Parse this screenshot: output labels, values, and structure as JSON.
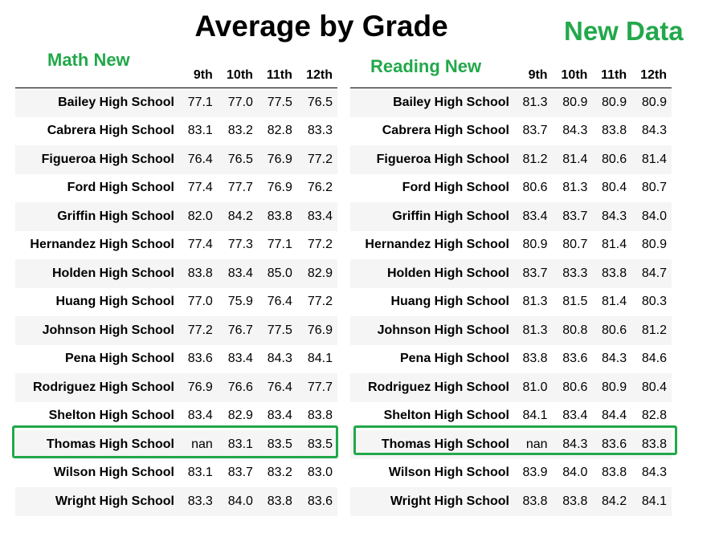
{
  "title": "Average by Grade",
  "tag": "New Data",
  "math": {
    "label": "Math New",
    "headers": [
      "",
      "9th",
      "10th",
      "11th",
      "12th"
    ],
    "rows": [
      [
        "Bailey High School",
        "77.1",
        "77.0",
        "77.5",
        "76.5"
      ],
      [
        "Cabrera High School",
        "83.1",
        "83.2",
        "82.8",
        "83.3"
      ],
      [
        "Figueroa High School",
        "76.4",
        "76.5",
        "76.9",
        "77.2"
      ],
      [
        "Ford High School",
        "77.4",
        "77.7",
        "76.9",
        "76.2"
      ],
      [
        "Griffin High School",
        "82.0",
        "84.2",
        "83.8",
        "83.4"
      ],
      [
        "Hernandez High School",
        "77.4",
        "77.3",
        "77.1",
        "77.2"
      ],
      [
        "Holden High School",
        "83.8",
        "83.4",
        "85.0",
        "82.9"
      ],
      [
        "Huang High School",
        "77.0",
        "75.9",
        "76.4",
        "77.2"
      ],
      [
        "Johnson High School",
        "77.2",
        "76.7",
        "77.5",
        "76.9"
      ],
      [
        "Pena High School",
        "83.6",
        "83.4",
        "84.3",
        "84.1"
      ],
      [
        "Rodriguez High School",
        "76.9",
        "76.6",
        "76.4",
        "77.7"
      ],
      [
        "Shelton High School",
        "83.4",
        "82.9",
        "83.4",
        "83.8"
      ],
      [
        "Thomas High School",
        "nan",
        "83.1",
        "83.5",
        "83.5"
      ],
      [
        "Wilson High School",
        "83.1",
        "83.7",
        "83.2",
        "83.0"
      ],
      [
        "Wright High School",
        "83.3",
        "84.0",
        "83.8",
        "83.6"
      ]
    ]
  },
  "reading": {
    "label": "Reading New",
    "headers": [
      "",
      "9th",
      "10th",
      "11th",
      "12th"
    ],
    "rows": [
      [
        "Bailey High School",
        "81.3",
        "80.9",
        "80.9",
        "80.9"
      ],
      [
        "Cabrera High School",
        "83.7",
        "84.3",
        "83.8",
        "84.3"
      ],
      [
        "Figueroa High School",
        "81.2",
        "81.4",
        "80.6",
        "81.4"
      ],
      [
        "Ford High School",
        "80.6",
        "81.3",
        "80.4",
        "80.7"
      ],
      [
        "Griffin High School",
        "83.4",
        "83.7",
        "84.3",
        "84.0"
      ],
      [
        "Hernandez High School",
        "80.9",
        "80.7",
        "81.4",
        "80.9"
      ],
      [
        "Holden High School",
        "83.7",
        "83.3",
        "83.8",
        "84.7"
      ],
      [
        "Huang High School",
        "81.3",
        "81.5",
        "81.4",
        "80.3"
      ],
      [
        "Johnson High School",
        "81.3",
        "80.8",
        "80.6",
        "81.2"
      ],
      [
        "Pena High School",
        "83.8",
        "83.6",
        "84.3",
        "84.6"
      ],
      [
        "Rodriguez High School",
        "81.0",
        "80.6",
        "80.9",
        "80.4"
      ],
      [
        "Shelton High School",
        "84.1",
        "83.4",
        "84.4",
        "82.8"
      ],
      [
        "Thomas High School",
        "nan",
        "84.3",
        "83.6",
        "83.8"
      ],
      [
        "Wilson High School",
        "83.9",
        "84.0",
        "83.8",
        "84.3"
      ],
      [
        "Wright High School",
        "83.8",
        "83.8",
        "84.2",
        "84.1"
      ]
    ]
  },
  "highlight_color": "#22a84a"
}
